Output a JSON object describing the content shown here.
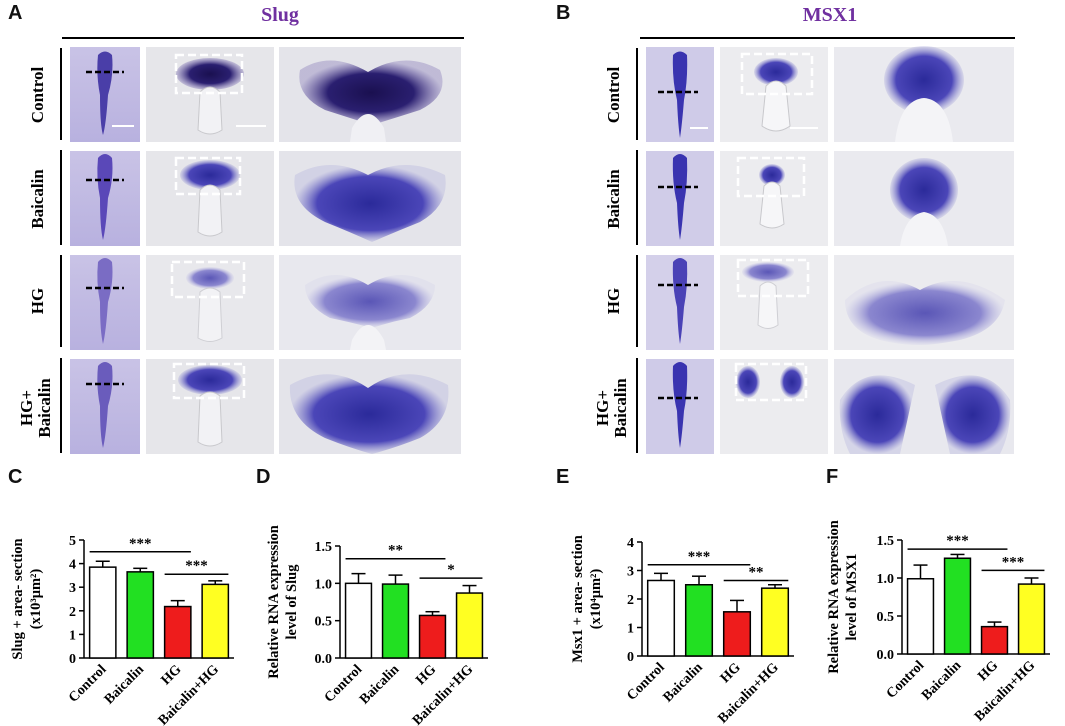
{
  "panels": {
    "A": {
      "letter": "A",
      "gene": "Slug"
    },
    "B": {
      "letter": "B",
      "gene": "MSX1"
    }
  },
  "row_labels": [
    "Control",
    "Baicalin",
    "HG",
    "HG+\nBaicalin"
  ],
  "row_labels_text": {
    "r0": "Control",
    "r1": "Baicalin",
    "r2": "HG",
    "r3a": "HG+",
    "r3b": "Baicalin"
  },
  "colors": {
    "gene_title": "#7030a0",
    "stain": "#3a2f9e",
    "control_bar": "#ffffff",
    "baicalin_bar": "#22e022",
    "hg_bar": "#ee1c1c",
    "baicalin_hg_bar": "#ffff22"
  },
  "chart_data": [
    {
      "id": "C",
      "letter": "C",
      "type": "bar",
      "categories": [
        "Control",
        "Baicalin",
        "HG",
        "Baicalin+HG"
      ],
      "values": [
        3.85,
        3.65,
        2.18,
        3.12
      ],
      "errors": [
        0.25,
        0.15,
        0.25,
        0.15
      ],
      "ylim": [
        0,
        5
      ],
      "yticks": [
        "0",
        "1",
        "2",
        "3",
        "4",
        "5"
      ],
      "ylabel_lines": [
        "Slug + area- section",
        "(x10³μm²)"
      ],
      "sig": [
        {
          "from": 0,
          "to": 2,
          "label": "***",
          "y": 4.5
        },
        {
          "from": 2,
          "to": 3,
          "label": "***",
          "y": 3.55
        }
      ]
    },
    {
      "id": "D",
      "letter": "D",
      "type": "bar",
      "categories": [
        "Control",
        "Baicalin",
        "HG",
        "Baicalin+HG"
      ],
      "values": [
        1.0,
        0.99,
        0.57,
        0.87
      ],
      "errors": [
        0.13,
        0.12,
        0.05,
        0.1
      ],
      "ylim": [
        0,
        1.5
      ],
      "yticks": [
        "0.0",
        "0.5",
        "1.0",
        "1.5"
      ],
      "ylabel_lines": [
        "Relative RNA expression",
        "level of Slug"
      ],
      "sig": [
        {
          "from": 0,
          "to": 2,
          "label": "**",
          "y": 1.33
        },
        {
          "from": 2,
          "to": 3,
          "label": "*",
          "y": 1.07
        }
      ]
    },
    {
      "id": "E",
      "letter": "E",
      "type": "bar",
      "categories": [
        "Control",
        "Baicalin",
        "HG",
        "Baicalin+HG"
      ],
      "values": [
        2.65,
        2.5,
        1.55,
        2.38
      ],
      "errors": [
        0.25,
        0.3,
        0.4,
        0.12
      ],
      "ylim": [
        0,
        4
      ],
      "yticks": [
        "0",
        "1",
        "2",
        "3",
        "4"
      ],
      "ylabel_lines": [
        "Msx1 + area- section",
        "(x10⁴μm²)"
      ],
      "sig": [
        {
          "from": 0,
          "to": 2,
          "label": "***",
          "y": 3.2
        },
        {
          "from": 2,
          "to": 3,
          "label": "**",
          "y": 2.65
        }
      ]
    },
    {
      "id": "F",
      "letter": "F",
      "type": "bar",
      "categories": [
        "Control",
        "Baicalin",
        "HG",
        "Baicalin+HG"
      ],
      "values": [
        0.99,
        1.26,
        0.36,
        0.92
      ],
      "errors": [
        0.18,
        0.05,
        0.06,
        0.08
      ],
      "ylim": [
        0,
        1.5
      ],
      "yticks": [
        "0.0",
        "0.5",
        "1.0",
        "1.5"
      ],
      "ylabel_lines": [
        "Relative RNA expression",
        "level of MSX1"
      ],
      "sig": [
        {
          "from": 0,
          "to": 2,
          "label": "***",
          "y": 1.38
        },
        {
          "from": 2,
          "to": 3,
          "label": "***",
          "y": 1.1
        }
      ]
    }
  ]
}
